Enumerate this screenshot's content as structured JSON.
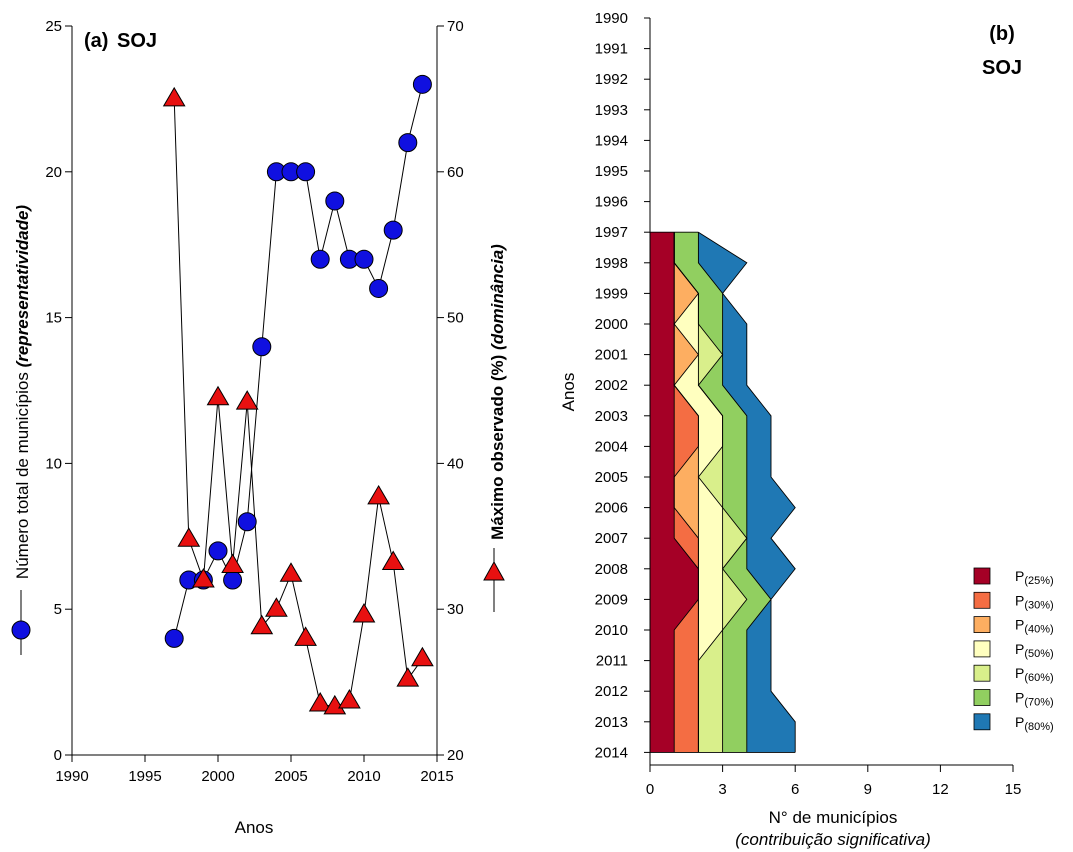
{
  "chart_data": [
    {
      "type": "line",
      "panel_label": "(a)",
      "title": "SOJ",
      "xlabel": "Anos",
      "xlim": [
        1990,
        2015
      ],
      "xticks": [
        "1990",
        "1995",
        "2000",
        "2005",
        "2010",
        "2015"
      ],
      "ylabel_left": "Número total de municípios",
      "ylabel_left_italic": "(representatividade)",
      "ylim_left": [
        0,
        25
      ],
      "yticks_left": [
        "0",
        "5",
        "10",
        "15",
        "20",
        "25"
      ],
      "ylabel_right": "Máximo observado (%)",
      "ylabel_right_italic": "(dominância)",
      "ylim_right": [
        20,
        70
      ],
      "yticks_right": [
        "20",
        "30",
        "40",
        "50",
        "60",
        "70"
      ],
      "grid": false,
      "series": [
        {
          "axis": "left",
          "marker": "circle",
          "color": "#1010e0",
          "x": [
            1997,
            1998,
            1999,
            2000,
            2001,
            2002,
            2003,
            2004,
            2005,
            2006,
            2007,
            2008,
            2009,
            2010,
            2011,
            2012,
            2013,
            2014
          ],
          "values": [
            4,
            6,
            6,
            7,
            6,
            8,
            14,
            20,
            20,
            20,
            17,
            19,
            17,
            17,
            16,
            18,
            21,
            23
          ]
        },
        {
          "axis": "right",
          "marker": "triangle",
          "color": "#e81010",
          "x": [
            1997,
            1998,
            1999,
            2000,
            2001,
            2002,
            2003,
            2004,
            2005,
            2006,
            2007,
            2008,
            2009,
            2010,
            2011,
            2012,
            2013,
            2014
          ],
          "values": [
            65,
            34.8,
            32,
            44.5,
            33,
            44.2,
            28.8,
            30,
            32.4,
            28,
            23.5,
            23.3,
            23.7,
            29.6,
            37.7,
            33.2,
            25.2,
            26.6
          ]
        }
      ]
    },
    {
      "type": "area",
      "stacked": true,
      "panel_label": "(b)",
      "title": "SOJ",
      "xlabel": "N° de municípios",
      "xlabel_italic": "(contribuição significativa)",
      "ylabel": "Anos",
      "xlim": [
        0,
        15
      ],
      "xticks": [
        "0",
        "3",
        "6",
        "9",
        "12",
        "15"
      ],
      "categories": [
        "1990",
        "1991",
        "1992",
        "1993",
        "1994",
        "1995",
        "1996",
        "1997",
        "1998",
        "1999",
        "2000",
        "2001",
        "2002",
        "2003",
        "2004",
        "2005",
        "2006",
        "2007",
        "2008",
        "2009",
        "2010",
        "2011",
        "2012",
        "2013",
        "2014"
      ],
      "cumulative_boundaries": [
        {
          "name": "P(25%)",
          "color": "#a50026",
          "values": [
            null,
            null,
            null,
            null,
            null,
            null,
            null,
            1,
            1,
            1,
            1,
            1,
            1,
            1,
            1,
            1,
            1,
            1,
            2,
            2,
            1,
            1,
            1,
            1,
            1
          ]
        },
        {
          "name": "P(30%)",
          "color": "#f46d43",
          "values": [
            null,
            null,
            null,
            null,
            null,
            null,
            null,
            1,
            1,
            1,
            1,
            1,
            1,
            2,
            2,
            1,
            1,
            2,
            2,
            2,
            2,
            2,
            2,
            2,
            2
          ]
        },
        {
          "name": "P(40%)",
          "color": "#fdae61",
          "values": [
            null,
            null,
            null,
            null,
            null,
            null,
            null,
            1,
            1,
            2,
            1,
            2,
            1,
            2,
            2,
            2,
            2,
            2,
            2,
            2,
            2,
            2,
            2,
            2,
            2
          ]
        },
        {
          "name": "P(50%)",
          "color": "#ffffbf",
          "values": [
            null,
            null,
            null,
            null,
            null,
            null,
            null,
            1,
            1,
            2,
            2,
            2,
            2,
            3,
            3,
            2,
            3,
            3,
            3,
            3,
            3,
            2,
            2,
            2,
            2
          ]
        },
        {
          "name": "P(60%)",
          "color": "#d9ef8b",
          "values": [
            null,
            null,
            null,
            null,
            null,
            null,
            null,
            1,
            1,
            2,
            2,
            3,
            2,
            3,
            3,
            3,
            3,
            4,
            3,
            4,
            3,
            3,
            3,
            3,
            3
          ]
        },
        {
          "name": "P(70%)",
          "color": "#91cf60",
          "values": [
            null,
            null,
            null,
            null,
            null,
            null,
            null,
            2,
            2,
            3,
            3,
            3,
            3,
            4,
            4,
            4,
            4,
            4,
            4,
            5,
            4,
            4,
            4,
            4,
            4
          ]
        },
        {
          "name": "P(80%)",
          "color": "#1f78b4",
          "values": [
            null,
            null,
            null,
            null,
            null,
            null,
            null,
            2,
            4,
            3,
            4,
            4,
            4,
            5,
            5,
            5,
            6,
            5,
            6,
            5,
            5,
            5,
            5,
            6,
            6
          ]
        }
      ],
      "legend": {
        "position": "right",
        "entries": [
          {
            "prefix": "P",
            "sub": "(25%)",
            "color": "#a50026"
          },
          {
            "prefix": "P",
            "sub": "(30%)",
            "color": "#f46d43"
          },
          {
            "prefix": "P",
            "sub": "(40%)",
            "color": "#fdae61"
          },
          {
            "prefix": "P",
            "sub": "(50%)",
            "color": "#ffffbf"
          },
          {
            "prefix": "P",
            "sub": "(60%)",
            "color": "#d9ef8b"
          },
          {
            "prefix": "P",
            "sub": "(70%)",
            "color": "#91cf60"
          },
          {
            "prefix": "P",
            "sub": "(80%)",
            "color": "#1f78b4"
          }
        ]
      }
    }
  ]
}
